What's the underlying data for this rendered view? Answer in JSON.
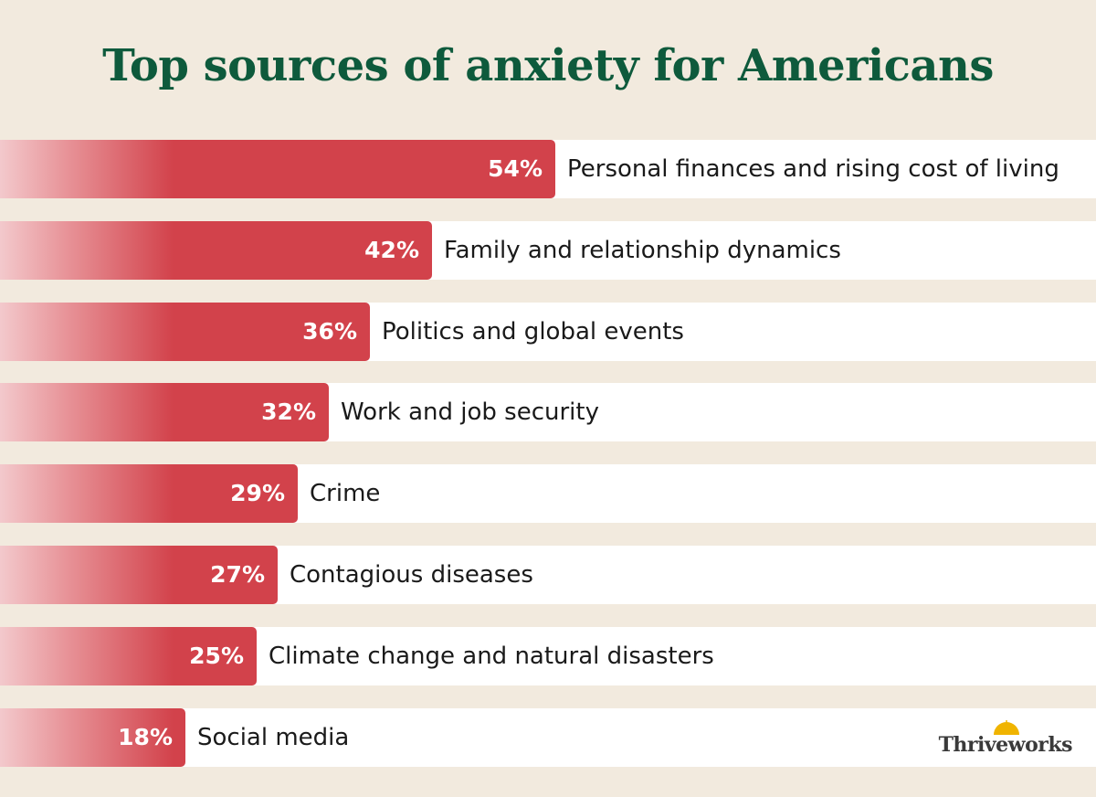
{
  "title": "Top sources of anxiety for Americans",
  "colors": {
    "title": "#0e5a3c",
    "bar": "#d2424b",
    "background": "#f2eade",
    "row": "#ffffff",
    "logo_sun": "#f0b400"
  },
  "chart_data": {
    "type": "bar",
    "orientation": "horizontal",
    "title": "Top sources of anxiety for Americans",
    "categories": [
      "Personal finances and rising cost of living",
      "Family and relationship dynamics",
      "Politics and global events",
      "Work and job security",
      "Crime",
      "Contagious diseases",
      "Climate change and natural disasters",
      "Social media"
    ],
    "values": [
      54,
      42,
      36,
      32,
      29,
      27,
      25,
      18
    ],
    "value_labels": [
      "54%",
      "42%",
      "36%",
      "32%",
      "29%",
      "27%",
      "25%",
      "18%"
    ],
    "unit": "%"
  },
  "brand": {
    "logo_text": "Thriveworks",
    "logo_icon": "sun-icon"
  }
}
